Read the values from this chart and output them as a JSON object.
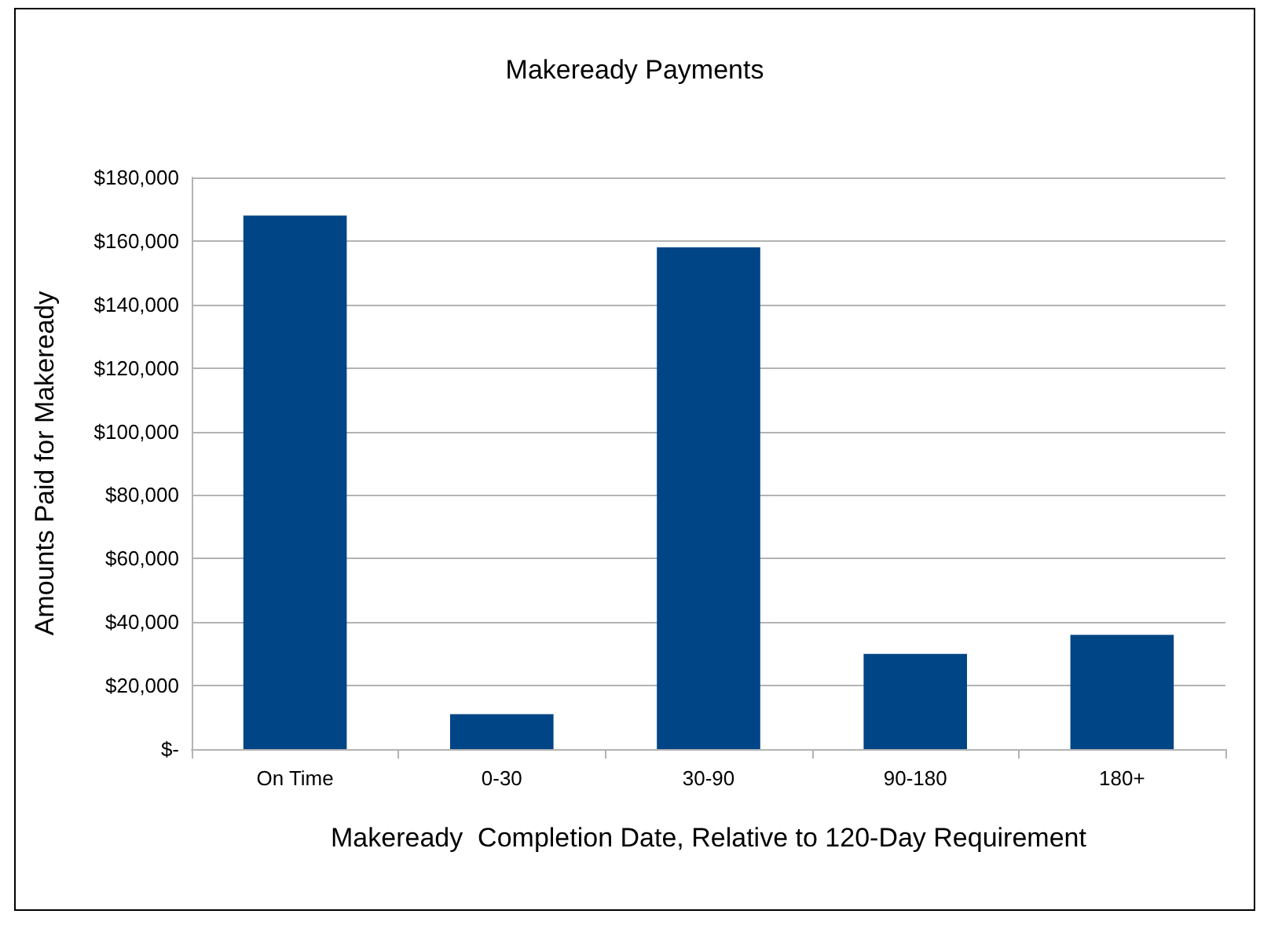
{
  "chart_data": {
    "type": "bar",
    "title": "Makeready Payments",
    "xlabel": "Makeready  Completion Date, Relative to 120-Day Requirement",
    "ylabel": "Amounts Paid for Makeready",
    "categories": [
      "On Time",
      "0-30",
      "30-90",
      "90-180",
      "180+"
    ],
    "values": [
      168000,
      11000,
      158000,
      30000,
      36000
    ],
    "color": "#004586",
    "ylim": [
      0,
      180000
    ],
    "yticks": [
      {
        "value": 0,
        "label": "$-"
      },
      {
        "value": 20000,
        "label": "$20,000"
      },
      {
        "value": 40000,
        "label": "$40,000"
      },
      {
        "value": 60000,
        "label": "$60,000"
      },
      {
        "value": 80000,
        "label": "$80,000"
      },
      {
        "value": 100000,
        "label": "$100,000"
      },
      {
        "value": 120000,
        "label": "$120,000"
      },
      {
        "value": 140000,
        "label": "$140,000"
      },
      {
        "value": 160000,
        "label": "$160,000"
      },
      {
        "value": 180000,
        "label": "$180,000"
      }
    ],
    "grid": "y"
  }
}
